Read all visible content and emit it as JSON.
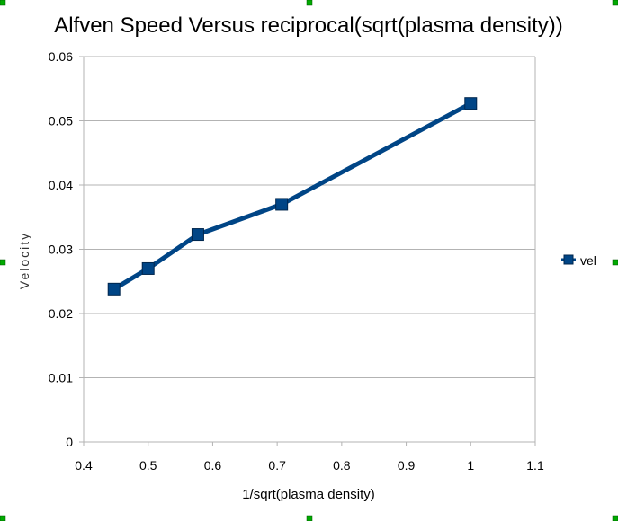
{
  "chart_data": {
    "type": "line",
    "title": "Alfven Speed Versus reciprocal(sqrt(plasma density))",
    "xlabel": "1/sqrt(plasma density)",
    "ylabel": "Velocity",
    "xlim": [
      0.4,
      1.1
    ],
    "ylim": [
      0,
      0.06
    ],
    "xticks": [
      "0.4",
      "0.5",
      "0.6",
      "0.7",
      "0.8",
      "0.9",
      "1",
      "1.1"
    ],
    "yticks": [
      "0",
      "0.01",
      "0.02",
      "0.03",
      "0.04",
      "0.05",
      "0.06"
    ],
    "grid": "horizontal",
    "legend_position": "right",
    "series": [
      {
        "name": "vel",
        "color": "#004586",
        "marker": "square",
        "x": [
          0.447,
          0.5,
          0.577,
          0.707,
          1.0
        ],
        "y": [
          0.0238,
          0.027,
          0.0323,
          0.037,
          0.0527
        ]
      }
    ]
  },
  "colors": {
    "line": "#004586",
    "marker_fill": "#004586",
    "marker_stroke": "#00264d",
    "grid": "#b3b3b3",
    "axis": "#b3b3b3",
    "handles": "#00aa00"
  }
}
